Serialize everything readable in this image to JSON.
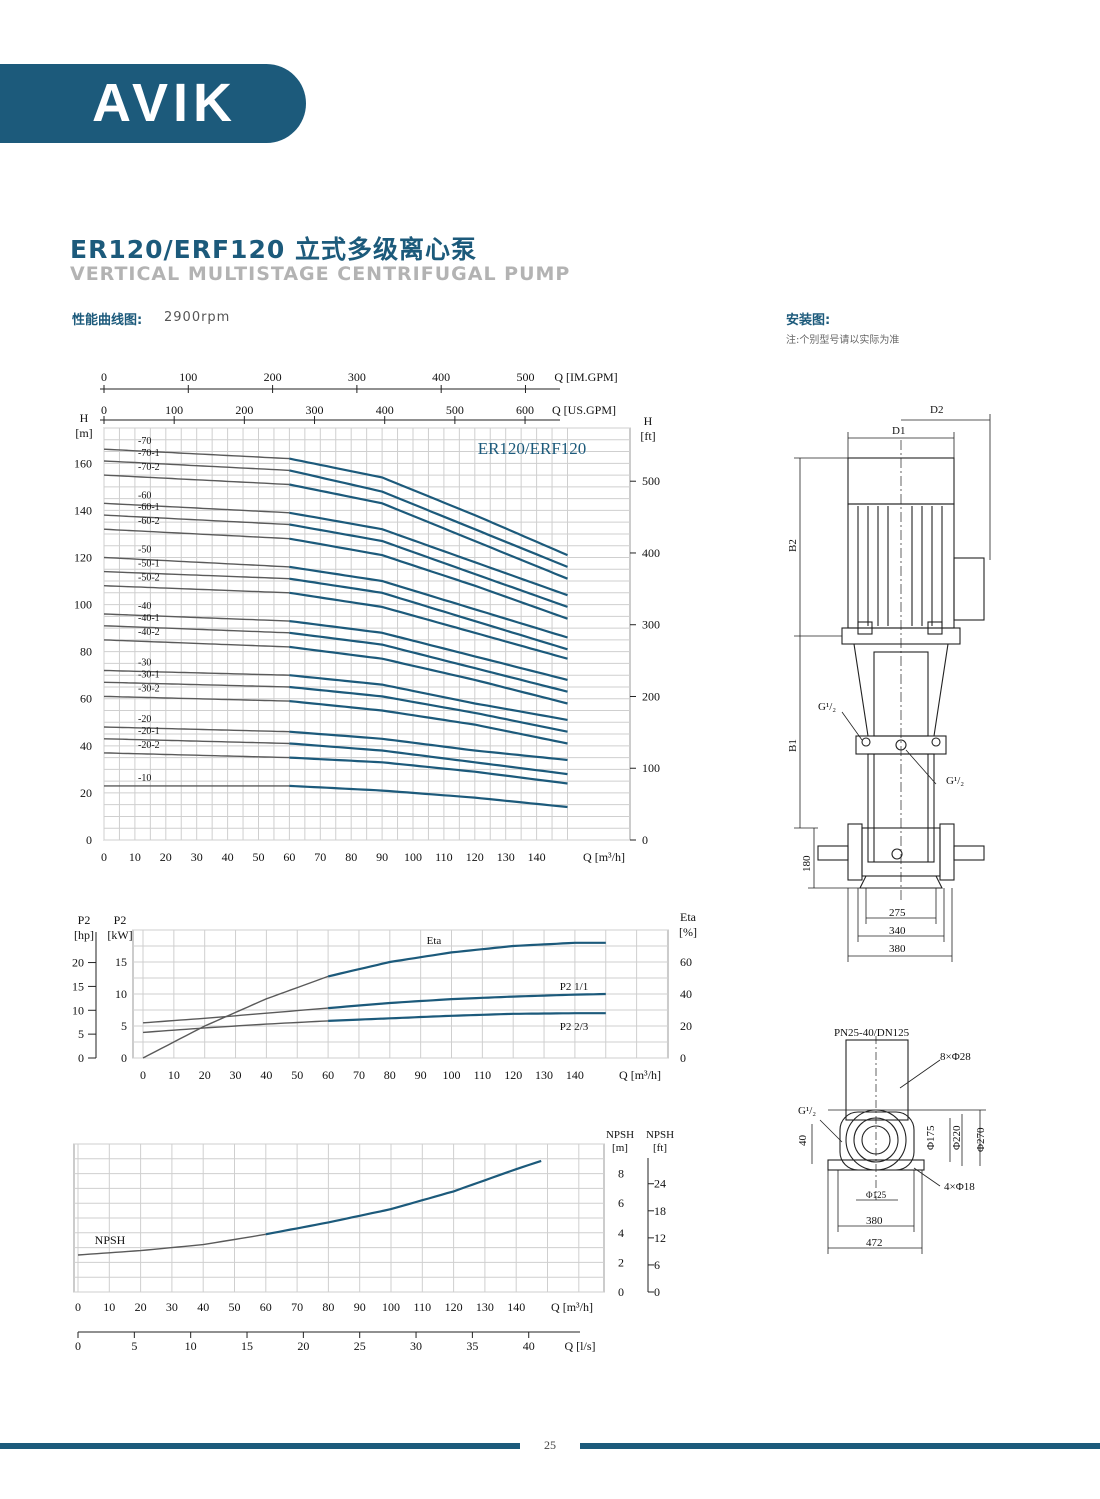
{
  "brand": {
    "logo_text": "AVIK",
    "color": "#1c5a7b"
  },
  "title": {
    "cn": "ER120/ERF120 立式多级离心泵",
    "en": "VERTICAL MULTISTAGE CENTRIFUGAL PUMP"
  },
  "performance": {
    "label": "性能曲线图:",
    "rpm": "2900rpm"
  },
  "installation": {
    "label": "安装图:",
    "note": "注:个别型号请以实际为准"
  },
  "page_number": "25",
  "chart_data": [
    {
      "type": "line",
      "id": "head-curves",
      "title": "ER120/ERF120",
      "ylabel_left": "H [m]",
      "ylabel_right": "H [ft]",
      "xlabel": "Q [m³/h]",
      "xlabel_top1": "Q [IM.GPM]",
      "xlabel_top2": "Q [US.GPM]",
      "xlim": [
        0,
        150
      ],
      "ylim": [
        0,
        175
      ],
      "x_ticks": [
        0,
        10,
        20,
        30,
        40,
        50,
        60,
        70,
        80,
        90,
        100,
        110,
        120,
        130,
        140
      ],
      "y_ticks_left": [
        0,
        20,
        40,
        60,
        80,
        100,
        120,
        140,
        160
      ],
      "y_ticks_right": [
        0,
        100,
        200,
        300,
        400,
        500
      ],
      "top_ticks_im": [
        0,
        100,
        200,
        300,
        400,
        500
      ],
      "top_ticks_us": [
        0,
        100,
        200,
        300,
        400,
        500,
        600
      ],
      "x": [
        0,
        60,
        90,
        120,
        150
      ],
      "series": [
        {
          "name": "-70",
          "values": [
            166,
            162,
            154,
            138,
            121
          ]
        },
        {
          "name": "-70-1",
          "values": [
            161,
            157,
            148,
            132,
            116
          ]
        },
        {
          "name": "-70-2",
          "values": [
            155,
            151,
            143,
            127,
            111
          ]
        },
        {
          "name": "-60",
          "values": [
            143,
            139,
            132,
            118,
            104
          ]
        },
        {
          "name": "-60-1",
          "values": [
            138,
            134,
            127,
            113,
            99
          ]
        },
        {
          "name": "-60-2",
          "values": [
            132,
            128,
            121,
            108,
            94
          ]
        },
        {
          "name": "-50",
          "values": [
            120,
            116,
            110,
            98,
            86
          ]
        },
        {
          "name": "-50-1",
          "values": [
            114,
            111,
            105,
            93,
            81
          ]
        },
        {
          "name": "-50-2",
          "values": [
            108,
            105,
            99,
            88,
            77
          ]
        },
        {
          "name": "-40",
          "values": [
            96,
            93,
            88,
            78,
            68
          ]
        },
        {
          "name": "-40-1",
          "values": [
            91,
            88,
            83,
            73,
            63
          ]
        },
        {
          "name": "-40-2",
          "values": [
            85,
            82,
            77,
            68,
            58
          ]
        },
        {
          "name": "-30",
          "values": [
            72,
            70,
            66,
            58,
            51
          ]
        },
        {
          "name": "-30-1",
          "values": [
            67,
            65,
            61,
            54,
            46
          ]
        },
        {
          "name": "-30-2",
          "values": [
            61,
            59,
            55,
            49,
            41
          ]
        },
        {
          "name": "-20",
          "values": [
            48,
            46,
            43,
            38,
            34
          ]
        },
        {
          "name": "-20-1",
          "values": [
            43,
            41,
            38,
            33,
            28
          ]
        },
        {
          "name": "-20-2",
          "values": [
            37,
            35,
            33,
            29,
            24
          ]
        },
        {
          "name": "-10",
          "values": [
            23,
            23,
            21,
            18,
            14
          ]
        }
      ]
    },
    {
      "type": "line",
      "id": "power-eff",
      "xlabel": "Q [m³/h]",
      "ylabel_left1": "P2 [hp]",
      "ylabel_left2": "P2 [kW]",
      "ylabel_right": "Eta [%]",
      "x_ticks": [
        0,
        10,
        20,
        30,
        40,
        50,
        60,
        70,
        80,
        90,
        100,
        110,
        120,
        130,
        140
      ],
      "hp_ticks": [
        0,
        5,
        10,
        15,
        20
      ],
      "kw_ticks": [
        0,
        5,
        10,
        15
      ],
      "eta_ticks": [
        0,
        20,
        40,
        60
      ],
      "x": [
        0,
        20,
        40,
        60,
        80,
        100,
        120,
        140,
        150
      ],
      "series": [
        {
          "name": "Eta",
          "values": [
            0,
            20,
            37,
            51,
            60,
            66,
            70,
            72,
            72
          ]
        },
        {
          "name": "P2 1/1",
          "values": [
            5.5,
            6.2,
            7.0,
            7.8,
            8.6,
            9.2,
            9.6,
            9.9,
            10
          ]
        },
        {
          "name": "P2 2/3",
          "values": [
            4,
            4.7,
            5.3,
            5.8,
            6.2,
            6.6,
            6.9,
            7.0,
            7.0
          ]
        }
      ]
    },
    {
      "type": "line",
      "id": "npsh",
      "xlabel": "Q [m³/h]",
      "xlabel2": "Q [l/s]",
      "ylabel_left": "NPSH [m]",
      "ylabel_right": "NPSH [ft]",
      "x_ticks": [
        0,
        10,
        20,
        30,
        40,
        50,
        60,
        70,
        80,
        90,
        100,
        110,
        120,
        130,
        140
      ],
      "ls_ticks": [
        0,
        5,
        10,
        15,
        20,
        25,
        30,
        35,
        40
      ],
      "m_ticks": [
        0,
        2,
        4,
        6,
        8
      ],
      "ft_ticks": [
        0,
        6,
        12,
        18,
        24
      ],
      "x": [
        0,
        20,
        40,
        60,
        80,
        100,
        120,
        140,
        150
      ],
      "series": [
        {
          "name": "NPSH",
          "values": [
            2.5,
            2.8,
            3.2,
            3.9,
            4.7,
            5.6,
            6.8,
            8.3,
            9.0
          ]
        }
      ]
    }
  ],
  "drawing": {
    "dims_front": {
      "d1": "D1",
      "d2": "D2",
      "b1": "B1",
      "b2": "B2",
      "base": "180",
      "g_upper": "G¹/₂",
      "g_lower": "G¹/₂",
      "w1": "275",
      "w2": "340",
      "w3": "380"
    },
    "dims_top": {
      "flange": "PN25-40/DN125",
      "holes": "8×Φ28",
      "g": "G¹/₂",
      "d40": "40",
      "d175": "Φ175",
      "d220": "Φ220",
      "d270": "Φ270",
      "d125": "Φ125",
      "anchor": "4×Φ18",
      "w380": "380",
      "w472": "472"
    }
  }
}
